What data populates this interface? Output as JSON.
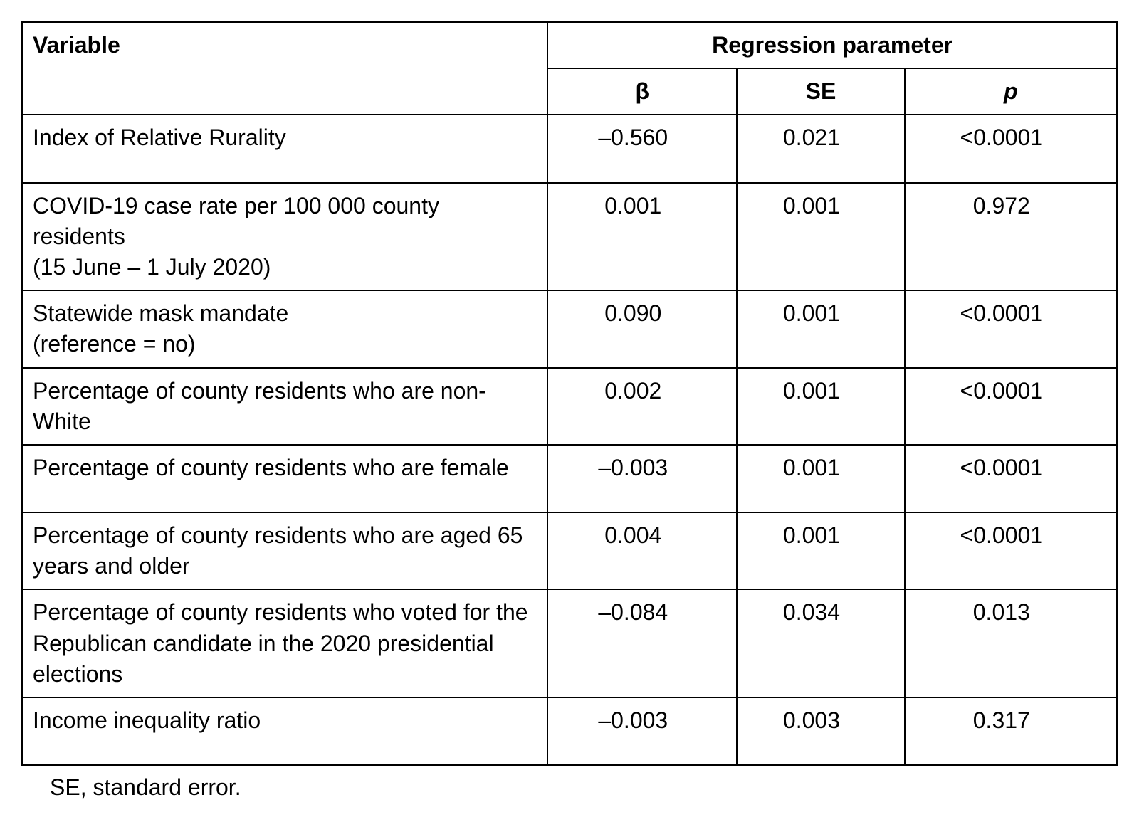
{
  "table": {
    "type": "table",
    "background_color": "#ffffff",
    "border_color": "#000000",
    "text_color": "#000000",
    "font_family": "Arial",
    "header_fontsize": 32,
    "cell_fontsize": 32,
    "columns": {
      "variable_header": "Variable",
      "regression_header": "Regression parameter",
      "beta": "β",
      "se": "SE",
      "p": "p"
    },
    "rows": [
      {
        "variable": "Index of Relative Rurality",
        "beta": "–0.560",
        "se": "0.021",
        "p": "<0.0001"
      },
      {
        "variable": "COVID-19 case rate per 100 000 county residents\n(15 June – 1 July 2020)",
        "beta": "0.001",
        "se": "0.001",
        "p": "0.972"
      },
      {
        "variable": "Statewide mask mandate\n(reference = no)",
        "beta": "0.090",
        "se": "0.001",
        "p": "<0.0001"
      },
      {
        "variable": "Percentage of county residents who are non-White",
        "beta": "0.002",
        "se": "0.001",
        "p": "<0.0001"
      },
      {
        "variable": "Percentage of county residents who are female",
        "beta": "–0.003",
        "se": "0.001",
        "p": "<0.0001"
      },
      {
        "variable": "Percentage of county residents who are aged 65 years and older",
        "beta": "0.004",
        "se": "0.001",
        "p": "<0.0001"
      },
      {
        "variable": "Percentage of county residents who voted for the Republican candidate in the 2020 presidential elections",
        "beta": "–0.084",
        "se": "0.034",
        "p": "0.013"
      },
      {
        "variable": "Income inequality ratio",
        "beta": "–0.003",
        "se": "0.003",
        "p": "0.317"
      }
    ],
    "footnote": "SE, standard error."
  }
}
